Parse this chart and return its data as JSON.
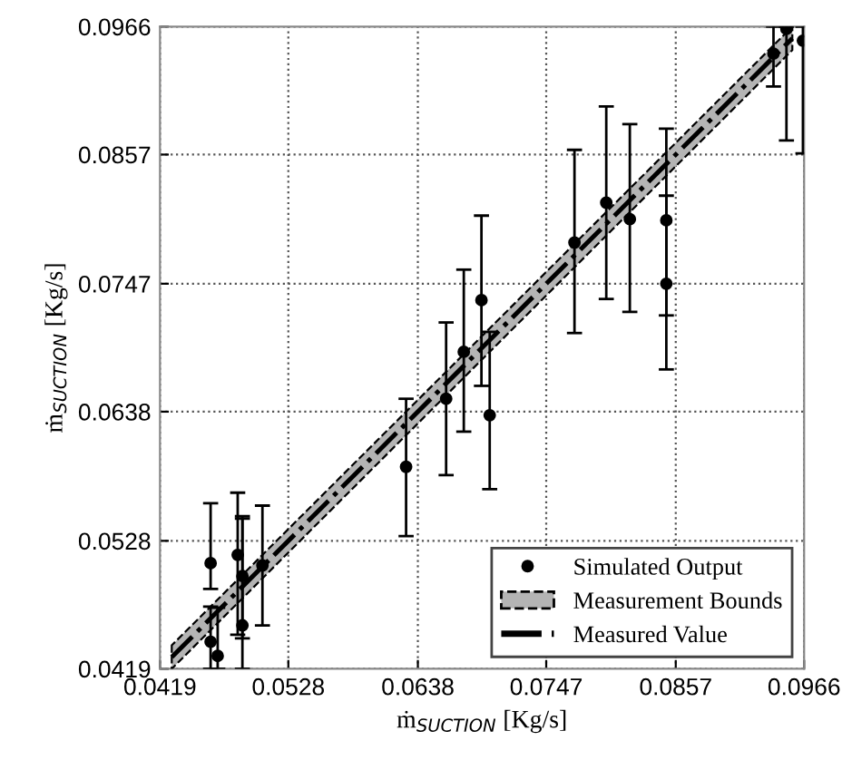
{
  "chart_data": {
    "type": "scatter",
    "xlabel": "ṁ$_{SUCTION}$ [Kg/s]",
    "ylabel": "ṁ$_{SUCTION}$ [Kg/s]",
    "x": [
      0.0462,
      0.0462,
      0.0468,
      0.0485,
      0.0489,
      0.0489,
      0.0506,
      0.0628,
      0.0662,
      0.0677,
      0.0692,
      0.0699,
      0.0771,
      0.0798,
      0.0818,
      0.0849,
      0.0849,
      0.0951,
      0.0965,
      0.094
    ],
    "series": [
      {
        "name": "Simulated Output",
        "color": "#000000",
        "marker": "circle",
        "values": [
          0.0509,
          0.0442,
          0.043,
          0.0516,
          0.0498,
          0.0456,
          0.0507,
          0.0591,
          0.0649,
          0.0689,
          0.0733,
          0.0635,
          0.0782,
          0.0816,
          0.0802,
          0.0801,
          0.0747,
          0.0964,
          0.0954,
          0.0943
        ],
        "errors": [
          [
            0.0487,
            0.056
          ],
          [
            0.0419,
            0.0472
          ],
          [
            0.0419,
            0.0471
          ],
          [
            0.0448,
            0.0569
          ],
          [
            0.0445,
            0.0547
          ],
          [
            0.0419,
            0.0549
          ],
          [
            0.0456,
            0.0558
          ],
          [
            0.0532,
            0.0649
          ],
          [
            0.0584,
            0.0714
          ],
          [
            0.0621,
            0.0759
          ],
          [
            0.066,
            0.0805
          ],
          [
            0.0572,
            0.0706
          ],
          [
            0.0705,
            0.0861
          ],
          [
            0.0734,
            0.0898
          ],
          [
            0.0723,
            0.0883
          ],
          [
            0.072,
            0.0879
          ],
          [
            0.0674,
            0.0822
          ],
          [
            0.0869,
            0.0966
          ],
          [
            0.0858,
            0.0966
          ],
          [
            0.0915,
            0.0966
          ]
        ]
      },
      {
        "name": "Measurement Bounds",
        "type": "line",
        "line_style": "dotted",
        "color": "#b4b4b4",
        "x": [
          0.0429,
          0.0692,
          0.0956
        ],
        "values": [
          null,
          null,
          null
        ],
        "lower": [
          0.0419,
          0.0682,
          0.0946
        ],
        "upper": [
          0.0439,
          0.0702,
          0.0966
        ]
      },
      {
        "name": "Measured Value",
        "type": "line",
        "color": "#000000",
        "line_style": "dashed",
        "x": [
          0.0429,
          0.0692,
          0.0956
        ],
        "values": [
          0.0429,
          0.0692,
          0.0956
        ]
      }
    ],
    "xlim": [
      0.0419,
      0.0966
    ],
    "ylim": [
      0.0419,
      0.0966
    ],
    "xticks": [
      0.0419,
      0.0528,
      0.0638,
      0.0747,
      0.0857,
      0.0966
    ],
    "yticks": [
      0.0419,
      0.0528,
      0.0638,
      0.0747,
      0.0857,
      0.0966
    ],
    "grid": true,
    "legend": "bottom right"
  }
}
